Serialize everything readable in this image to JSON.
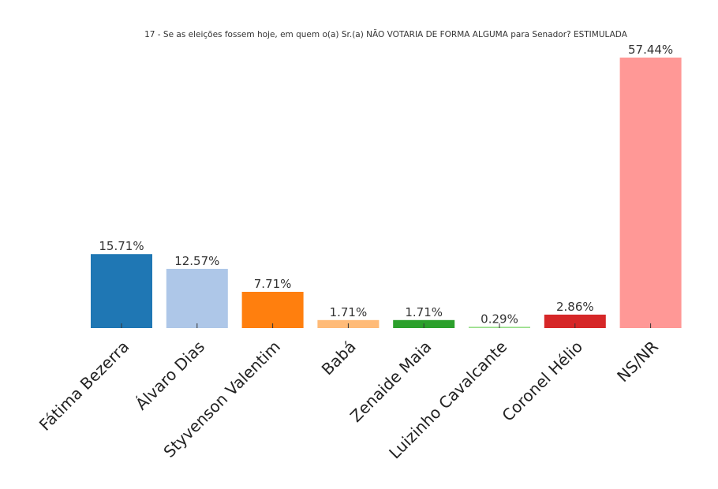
{
  "chart_data": {
    "type": "bar",
    "title": "17 - Se as eleições fossem hoje, em quem o(a) Sr.(a) NÃO VOTARIA DE FORMA ALGUMA para Senador? ESTIMULADA",
    "xlabel": "",
    "ylabel": "",
    "categories": [
      "Fátima Bezerra",
      "Álvaro Dias",
      "Styvenson Valentim",
      "Babá",
      "Zenaide Maia",
      "Luizinho Cavalcante",
      "Coronel Hélio",
      "NS/NR"
    ],
    "values": [
      15.71,
      12.57,
      7.71,
      1.71,
      1.71,
      0.29,
      2.86,
      57.44
    ],
    "value_labels": [
      "15.71%",
      "12.57%",
      "7.71%",
      "1.71%",
      "1.71%",
      "0.29%",
      "2.86%",
      "57.44%"
    ],
    "colors": [
      "#1f77b4",
      "#aec7e8",
      "#ff7f0e",
      "#ffbb78",
      "#2ca02c",
      "#98df8a",
      "#d62728",
      "#ff9896"
    ],
    "ylim": [
      0,
      57.44
    ],
    "grid": false,
    "legend": "none"
  }
}
